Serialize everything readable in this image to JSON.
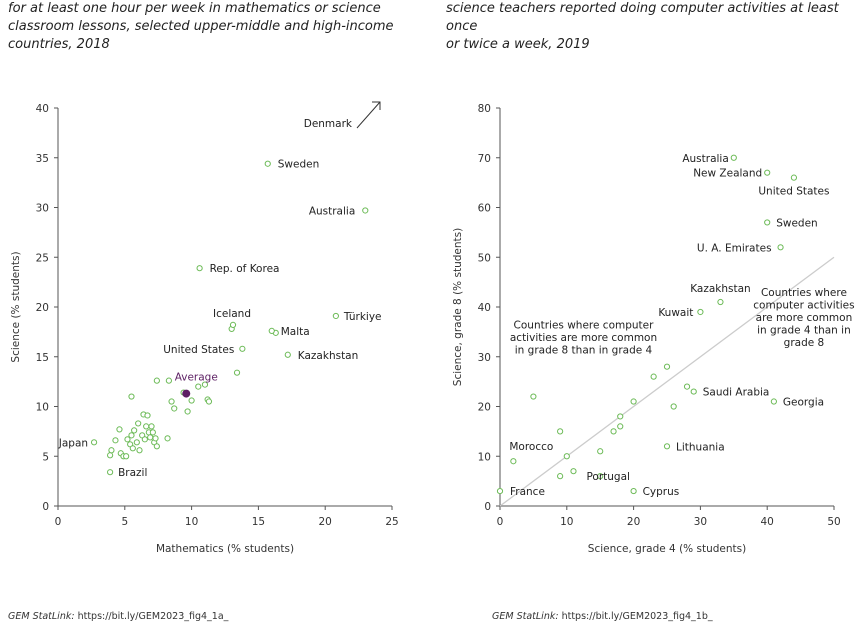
{
  "left": {
    "subtitle_lines": [
      "for at least one hour per week in mathematics or science",
      "classroom lessons, selected upper-middle and high-income",
      "countries, 2018"
    ],
    "source_lead": "GEM StatLink:",
    "source_url": "https://bit.ly/GEM2023_fig4_1a_"
  },
  "right": {
    "subtitle_lines": [
      "science teachers reported doing computer activities at least once",
      "or twice a week, 2019"
    ],
    "source_lead": "GEM StatLink:",
    "source_url": "https://bit.ly/GEM2023_fig4_1b_"
  },
  "colors": {
    "point": "#6dbb58",
    "average": "#5c1f63",
    "axis": "#555555",
    "diagonal": "#cccccc",
    "arrow": "#333333"
  },
  "chart_data": [
    {
      "type": "scatter",
      "xlabel": "Mathematics (% students)",
      "ylabel": "Science (% students)",
      "xlim": [
        0,
        25
      ],
      "ylim": [
        0,
        40
      ],
      "xticks": [
        0,
        5,
        10,
        15,
        20,
        25
      ],
      "yticks": [
        0,
        5,
        10,
        15,
        20,
        25,
        30,
        35,
        40
      ],
      "grid": false,
      "labeled_points": [
        {
          "label": "Sweden",
          "x": 15.7,
          "y": 34.4
        },
        {
          "label": "Australia",
          "x": 23.0,
          "y": 29.7
        },
        {
          "label": "Rep. of Korea",
          "x": 10.6,
          "y": 23.9
        },
        {
          "label": "Iceland",
          "x": 13.1,
          "y": 18.2
        },
        {
          "label": "Malta",
          "x": 16.0,
          "y": 17.6
        },
        {
          "label": "Türkiye",
          "x": 20.8,
          "y": 19.1
        },
        {
          "label": "United States",
          "x": 13.8,
          "y": 15.8
        },
        {
          "label": "Kazakhstan",
          "x": 17.2,
          "y": 15.2
        },
        {
          "label": "Japan",
          "x": 2.7,
          "y": 6.4
        },
        {
          "label": "Brazil",
          "x": 3.9,
          "y": 3.4
        }
      ],
      "average": {
        "label": "Average",
        "x": 9.6,
        "y": 11.3
      },
      "offscale_label": "Denmark",
      "other_points": [
        [
          16.3,
          17.4
        ],
        [
          13.0,
          17.8
        ],
        [
          13.4,
          13.4
        ],
        [
          3.9,
          5.1
        ],
        [
          4.0,
          5.6
        ],
        [
          4.3,
          6.6
        ],
        [
          4.6,
          7.7
        ],
        [
          4.7,
          5.3
        ],
        [
          4.9,
          5.0
        ],
        [
          5.1,
          5.0
        ],
        [
          5.2,
          6.7
        ],
        [
          5.4,
          6.2
        ],
        [
          5.5,
          7.1
        ],
        [
          5.6,
          5.8
        ],
        [
          5.7,
          7.6
        ],
        [
          5.9,
          6.4
        ],
        [
          6.0,
          8.3
        ],
        [
          6.1,
          5.6
        ],
        [
          6.3,
          7.1
        ],
        [
          6.4,
          9.2
        ],
        [
          6.5,
          6.7
        ],
        [
          6.6,
          8.0
        ],
        [
          6.7,
          9.1
        ],
        [
          6.8,
          7.4
        ],
        [
          6.9,
          6.9
        ],
        [
          7.0,
          8.0
        ],
        [
          7.1,
          7.4
        ],
        [
          7.2,
          6.4
        ],
        [
          7.3,
          6.8
        ],
        [
          7.4,
          6.0
        ],
        [
          5.5,
          11.0
        ],
        [
          7.4,
          12.6
        ],
        [
          8.3,
          12.6
        ],
        [
          8.2,
          6.8
        ],
        [
          8.5,
          10.5
        ],
        [
          8.7,
          9.8
        ],
        [
          9.7,
          9.5
        ],
        [
          9.4,
          11.4
        ],
        [
          10.0,
          10.6
        ],
        [
          10.5,
          12.0
        ],
        [
          11.0,
          12.2
        ],
        [
          11.2,
          10.7
        ],
        [
          11.3,
          10.5
        ]
      ]
    },
    {
      "type": "scatter",
      "xlabel": "Science, grade 4 (% students)",
      "ylabel": "Science, grade 8 (% students)",
      "xlim": [
        0,
        50
      ],
      "ylim": [
        0,
        80
      ],
      "xticks": [
        0,
        10,
        20,
        30,
        40,
        50
      ],
      "yticks": [
        0,
        10,
        20,
        30,
        40,
        50,
        60,
        70,
        80
      ],
      "grid": false,
      "diagonal": [
        [
          0,
          0
        ],
        [
          50,
          50
        ]
      ],
      "annotations": [
        {
          "lines": [
            "Countries where computer",
            "activities are more common",
            "in grade 8 than in grade 4"
          ],
          "x": 12.5,
          "y": 34
        },
        {
          "lines": [
            "Countries where",
            "computer activities",
            "are more common",
            "in grade 4 than in",
            "grade 8"
          ],
          "x": 45.5,
          "y": 38
        }
      ],
      "labeled_points": [
        {
          "label": "Australia",
          "x": 35.0,
          "y": 70.0
        },
        {
          "label": "New Zealand",
          "x": 40.0,
          "y": 67.0
        },
        {
          "label": "United States",
          "x": 44.0,
          "y": 66.0
        },
        {
          "label": "Sweden",
          "x": 40.0,
          "y": 57.0
        },
        {
          "label": "U. A. Emirates",
          "x": 42.0,
          "y": 52.0
        },
        {
          "label": "Kazakhstan",
          "x": 33.0,
          "y": 41.0
        },
        {
          "label": "Kuwait",
          "x": 30.0,
          "y": 39.0
        },
        {
          "label": "Saudi Arabia",
          "x": 29.0,
          "y": 23.0
        },
        {
          "label": "Georgia",
          "x": 41.0,
          "y": 21.0
        },
        {
          "label": "Lithuania",
          "x": 25.0,
          "y": 12.0
        },
        {
          "label": "Morocco",
          "x": 2.0,
          "y": 9.0
        },
        {
          "label": "France",
          "x": 0.0,
          "y": 3.0
        },
        {
          "label": "Portugal",
          "x": 15.0,
          "y": 6.0
        },
        {
          "label": "Cyprus",
          "x": 20.0,
          "y": 3.0
        }
      ],
      "other_points": [
        [
          5,
          22
        ],
        [
          9,
          15
        ],
        [
          10,
          10
        ],
        [
          11,
          7
        ],
        [
          9,
          6
        ],
        [
          15,
          11
        ],
        [
          17,
          15
        ],
        [
          18,
          16
        ],
        [
          18,
          18
        ],
        [
          20,
          21
        ],
        [
          23,
          26
        ],
        [
          25,
          28
        ],
        [
          26,
          20
        ],
        [
          28,
          24
        ]
      ]
    }
  ]
}
